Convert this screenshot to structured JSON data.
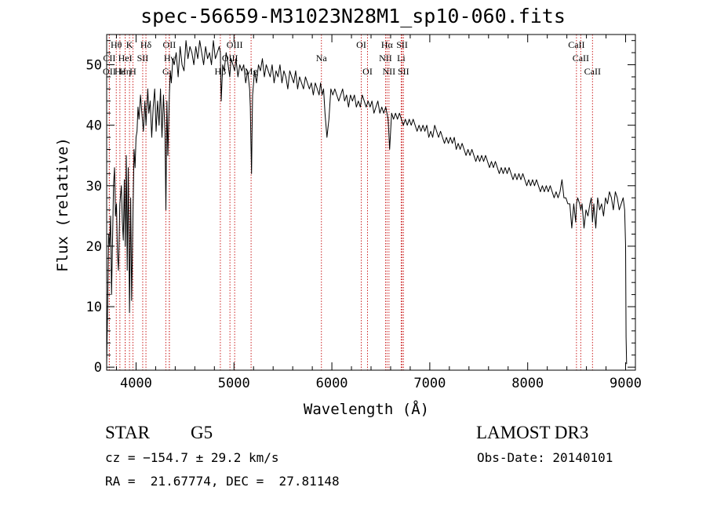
{
  "chart_data": {
    "type": "line",
    "title": "spec-56659-M31023N28M1_sp10-060.fits",
    "xlabel": "Wavelength (Å)",
    "ylabel": "Flux (relative)",
    "xlim": [
      3700,
      9100
    ],
    "ylim": [
      -0.5,
      55
    ],
    "xticks": [
      4000,
      5000,
      6000,
      7000,
      8000,
      9000
    ],
    "yticks": [
      0,
      10,
      20,
      30,
      40,
      50
    ],
    "grid": false,
    "series": [
      {
        "name": "spectrum",
        "x": [
          3700,
          3710,
          3720,
          3730,
          3740,
          3750,
          3760,
          3770,
          3780,
          3790,
          3800,
          3810,
          3820,
          3835,
          3850,
          3860,
          3870,
          3880,
          3890,
          3900,
          3910,
          3920,
          3933,
          3945,
          3955,
          3968,
          3980,
          3990,
          4000,
          4010,
          4020,
          4030,
          4045,
          4060,
          4075,
          4090,
          4101,
          4110,
          4120,
          4130,
          4145,
          4160,
          4175,
          4190,
          4205,
          4220,
          4235,
          4250,
          4265,
          4280,
          4295,
          4305,
          4315,
          4325,
          4340,
          4350,
          4360,
          4375,
          4390,
          4410,
          4430,
          4450,
          4470,
          4490,
          4510,
          4530,
          4550,
          4570,
          4590,
          4610,
          4630,
          4650,
          4670,
          4690,
          4710,
          4730,
          4750,
          4770,
          4790,
          4810,
          4830,
          4850,
          4861,
          4870,
          4885,
          4900,
          4920,
          4940,
          4957,
          4970,
          4990,
          5007,
          5020,
          5040,
          5060,
          5080,
          5100,
          5120,
          5140,
          5160,
          5167,
          5173,
          5180,
          5184,
          5190,
          5210,
          5230,
          5250,
          5270,
          5290,
          5310,
          5330,
          5350,
          5370,
          5390,
          5410,
          5430,
          5450,
          5470,
          5490,
          5510,
          5530,
          5550,
          5570,
          5590,
          5610,
          5630,
          5650,
          5670,
          5690,
          5710,
          5730,
          5750,
          5770,
          5790,
          5810,
          5830,
          5850,
          5870,
          5885,
          5893,
          5900,
          5915,
          5930,
          5950,
          5970,
          5990,
          6010,
          6030,
          6050,
          6070,
          6090,
          6110,
          6130,
          6150,
          6170,
          6190,
          6210,
          6230,
          6250,
          6270,
          6290,
          6310,
          6330,
          6350,
          6370,
          6390,
          6410,
          6430,
          6450,
          6470,
          6490,
          6510,
          6530,
          6550,
          6563,
          6575,
          6590,
          6610,
          6630,
          6650,
          6670,
          6690,
          6710,
          6730,
          6750,
          6770,
          6790,
          6810,
          6830,
          6850,
          6870,
          6890,
          6910,
          6930,
          6950,
          6970,
          6990,
          7010,
          7030,
          7050,
          7070,
          7090,
          7110,
          7130,
          7150,
          7170,
          7190,
          7210,
          7230,
          7250,
          7270,
          7290,
          7310,
          7330,
          7350,
          7370,
          7390,
          7410,
          7430,
          7450,
          7470,
          7490,
          7510,
          7530,
          7550,
          7570,
          7590,
          7610,
          7630,
          7650,
          7670,
          7690,
          7710,
          7730,
          7750,
          7770,
          7790,
          7810,
          7830,
          7850,
          7870,
          7890,
          7910,
          7930,
          7950,
          7970,
          7990,
          8010,
          8030,
          8050,
          8070,
          8090,
          8110,
          8130,
          8150,
          8170,
          8190,
          8210,
          8230,
          8250,
          8270,
          8290,
          8310,
          8330,
          8350,
          8370,
          8390,
          8410,
          8430,
          8450,
          8470,
          8490,
          8498,
          8510,
          8530,
          8542,
          8555,
          8575,
          8595,
          8615,
          8635,
          8650,
          8662,
          8675,
          8695,
          8715,
          8735,
          8755,
          8775,
          8795,
          8815,
          8835,
          8855,
          8875,
          8895,
          8915,
          8935,
          8955,
          8975,
          8990,
          9000,
          9005,
          9010
        ],
        "values": [
          0.5,
          10,
          22,
          20,
          25,
          12,
          21,
          30,
          33,
          25,
          27,
          19,
          16,
          27,
          30,
          24,
          21,
          31,
          20,
          35,
          16,
          33,
          9,
          28,
          11,
          25,
          36,
          33,
          38,
          39,
          43,
          41,
          45,
          42,
          39,
          44,
          40,
          43,
          46,
          42,
          44,
          38,
          43,
          46,
          39,
          44,
          40,
          46,
          38,
          45,
          39,
          26,
          44,
          35,
          45,
          49,
          47,
          51,
          50,
          52,
          48,
          53,
          50,
          49,
          54,
          51,
          53,
          52,
          50,
          53,
          51,
          54,
          52,
          50,
          53,
          51,
          52,
          50,
          54,
          51,
          52,
          53,
          52,
          44,
          50,
          49,
          52,
          50,
          48,
          51,
          50,
          49,
          51,
          48,
          50,
          49,
          50,
          47,
          49,
          46,
          43,
          37,
          32,
          38,
          45,
          49,
          47,
          50,
          49,
          51,
          48,
          50,
          49,
          48,
          50,
          47,
          49,
          48,
          50,
          47,
          49,
          48,
          46,
          49,
          48,
          47,
          49,
          46,
          48,
          47,
          46,
          48,
          47,
          46,
          47,
          45,
          47,
          46,
          45,
          47,
          46,
          45,
          46,
          42,
          38,
          41,
          46,
          45,
          46,
          45,
          44,
          45,
          46,
          44,
          45,
          43,
          45,
          44,
          45,
          43,
          44,
          43,
          45,
          44,
          43,
          44,
          43,
          44,
          42,
          43,
          44,
          42,
          43,
          42,
          43,
          42,
          41,
          36,
          42,
          41,
          42,
          41,
          42,
          41,
          40,
          41,
          40,
          41,
          40,
          41,
          40,
          39,
          40,
          39,
          40,
          39,
          40,
          38,
          39,
          38,
          40,
          39,
          38,
          39,
          38,
          37,
          38,
          37,
          38,
          37,
          38,
          36,
          37,
          36,
          37,
          36,
          35,
          36,
          35,
          36,
          35,
          34,
          35,
          34,
          35,
          34,
          35,
          34,
          33,
          34,
          33,
          34,
          33,
          32,
          33,
          32,
          33,
          32,
          33,
          32,
          31,
          32,
          31,
          32,
          31,
          32,
          31,
          30,
          31,
          30,
          31,
          30,
          31,
          30,
          29,
          30,
          29,
          30,
          29,
          30,
          29,
          28,
          29,
          28,
          29,
          31,
          28,
          28,
          27,
          27,
          23,
          27,
          24,
          27,
          28,
          27,
          26,
          27,
          23,
          26,
          25,
          27,
          28,
          24,
          27,
          23,
          28,
          26,
          27,
          25,
          28,
          27,
          29,
          28,
          26,
          29,
          28,
          26,
          27,
          28,
          26,
          20,
          5,
          0.5
        ]
      }
    ],
    "lines": [
      {
        "label": "Hθ",
        "x": 3798,
        "row": 1
      },
      {
        "label": "K",
        "x": 3933,
        "row": 1
      },
      {
        "label": "Hδ",
        "x": 4101,
        "row": 1
      },
      {
        "label": "OII",
        "x": 4340,
        "row": 1
      },
      {
        "label": "OIII",
        "x": 5007,
        "row": 1
      },
      {
        "label": "OI",
        "x": 6300,
        "row": 1
      },
      {
        "label": "Hα",
        "x": 6563,
        "row": 1
      },
      {
        "label": "SII",
        "x": 6717,
        "row": 1
      },
      {
        "label": "CaII",
        "x": 8498,
        "row": 1
      },
      {
        "label": "CII",
        "x": 3727,
        "row": 2
      },
      {
        "label": "HeI",
        "x": 3889,
        "row": 2
      },
      {
        "label": "SII",
        "x": 4068,
        "row": 2
      },
      {
        "label": "Hγ",
        "x": 4340,
        "row": 2
      },
      {
        "label": "OIII",
        "x": 4959,
        "row": 2
      },
      {
        "label": "Na",
        "x": 5893,
        "row": 2
      },
      {
        "label": "NII",
        "x": 6548,
        "row": 2
      },
      {
        "label": "Li",
        "x": 6708,
        "row": 2
      },
      {
        "label": "CaII",
        "x": 8542,
        "row": 2
      },
      {
        "label": "OII",
        "x": 3727,
        "row": 3
      },
      {
        "label": "Hε",
        "x": 3835,
        "row": 3
      },
      {
        "label": "Hη",
        "x": 3889,
        "row": 3
      },
      {
        "label": "H",
        "x": 3968,
        "row": 3
      },
      {
        "label": "G",
        "x": 4304,
        "row": 3
      },
      {
        "label": "Hβ",
        "x": 4861,
        "row": 3
      },
      {
        "label": "Mg",
        "x": 5175,
        "row": 3
      },
      {
        "label": "OI",
        "x": 6364,
        "row": 3
      },
      {
        "label": "NII",
        "x": 6583,
        "row": 3
      },
      {
        "label": "SII",
        "x": 6731,
        "row": 3
      },
      {
        "label": "CaII",
        "x": 8662,
        "row": 3
      }
    ],
    "line_color": "#cc2222"
  },
  "info": {
    "class": "STAR",
    "subclass": "G5",
    "survey": "LAMOST DR3",
    "cz": "cz = −154.7 ± 29.2 km/s",
    "obs_date": "Obs-Date: 20140101",
    "radec": "RA =  21.67774, DEC =  27.81148"
  }
}
